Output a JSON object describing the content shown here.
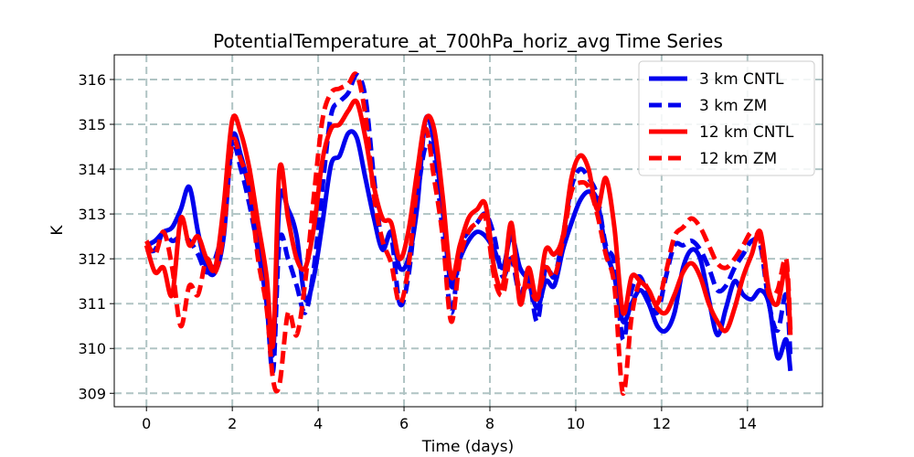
{
  "chart_data": {
    "type": "line",
    "title": "PotentialTemperature_at_700hPa_horiz_avg Time Series",
    "xlabel": "Time (days)",
    "ylabel": "K",
    "xlim": [
      -0.75,
      15.75
    ],
    "ylim": [
      308.7,
      316.55
    ],
    "xticks": [
      0,
      2,
      4,
      6,
      8,
      10,
      12,
      14
    ],
    "xtick_labels": [
      "0",
      "2",
      "4",
      "6",
      "8",
      "10",
      "12",
      "14"
    ],
    "yticks": [
      309,
      310,
      311,
      312,
      313,
      314,
      315,
      316
    ],
    "ytick_labels": [
      "309",
      "310",
      "311",
      "312",
      "313",
      "314",
      "315",
      "316"
    ],
    "grid": true,
    "legend_position": "top-right",
    "series": [
      {
        "name": "3 km CNTL",
        "color": "#0000ee",
        "style": "solid",
        "x": [
          0,
          0.2,
          0.4,
          0.6,
          0.8,
          1.0,
          1.2,
          1.4,
          1.6,
          1.8,
          2.0,
          2.2,
          2.4,
          2.6,
          2.8,
          2.95,
          3.1,
          3.3,
          3.5,
          3.7,
          3.9,
          4.1,
          4.3,
          4.5,
          4.7,
          4.9,
          5.1,
          5.3,
          5.5,
          5.7,
          5.9,
          6.1,
          6.3,
          6.5,
          6.7,
          6.9,
          7.1,
          7.3,
          7.5,
          7.7,
          7.9,
          8.1,
          8.3,
          8.5,
          8.7,
          8.9,
          9.1,
          9.3,
          9.5,
          9.7,
          9.9,
          10.1,
          10.3,
          10.5,
          10.7,
          10.9,
          11.1,
          11.3,
          11.5,
          11.7,
          11.9,
          12.1,
          12.3,
          12.5,
          12.7,
          12.9,
          13.1,
          13.3,
          13.5,
          13.7,
          13.9,
          14.1,
          14.3,
          14.5,
          14.7,
          14.9,
          15.0
        ],
        "values": [
          312.3,
          312.4,
          312.6,
          312.7,
          313.1,
          313.6,
          312.6,
          311.8,
          311.7,
          312.5,
          314.7,
          314.3,
          313.5,
          312.4,
          311.2,
          309.9,
          313.3,
          313.1,
          312.5,
          311.1,
          311.6,
          312.8,
          314.1,
          314.3,
          314.8,
          314.7,
          313.8,
          312.9,
          312.2,
          312.6,
          311.8,
          312.0,
          313.1,
          315.1,
          314.6,
          313.1,
          311.4,
          312.0,
          312.4,
          312.6,
          312.5,
          312.2,
          311.8,
          312.5,
          311.8,
          311.5,
          310.9,
          311.5,
          311.4,
          312.2,
          312.8,
          313.3,
          313.5,
          313.3,
          312.2,
          311.6,
          310.6,
          311.0,
          311.3,
          311.0,
          310.5,
          310.4,
          310.8,
          311.8,
          312.2,
          312.0,
          311.1,
          310.3,
          310.9,
          311.5,
          311.2,
          311.1,
          311.3,
          311.0,
          309.8,
          310.2,
          309.5
        ]
      },
      {
        "name": "3 km ZM",
        "color": "#0000ee",
        "style": "dashed",
        "x": [
          0,
          0.2,
          0.4,
          0.6,
          0.8,
          1.0,
          1.2,
          1.4,
          1.6,
          1.8,
          2.0,
          2.2,
          2.4,
          2.6,
          2.8,
          2.95,
          3.1,
          3.3,
          3.5,
          3.7,
          3.9,
          4.1,
          4.3,
          4.5,
          4.7,
          4.9,
          5.1,
          5.3,
          5.5,
          5.7,
          5.9,
          6.1,
          6.3,
          6.5,
          6.7,
          6.9,
          7.1,
          7.3,
          7.5,
          7.7,
          7.9,
          8.1,
          8.3,
          8.5,
          8.7,
          8.9,
          9.1,
          9.3,
          9.5,
          9.7,
          9.9,
          10.1,
          10.3,
          10.5,
          10.7,
          10.9,
          11.1,
          11.3,
          11.5,
          11.7,
          11.9,
          12.1,
          12.3,
          12.5,
          12.7,
          12.9,
          13.1,
          13.3,
          13.5,
          13.7,
          13.9,
          14.1,
          14.3,
          14.5,
          14.7,
          14.9,
          15.0
        ],
        "values": [
          312.2,
          312.2,
          312.6,
          312.4,
          312.5,
          312.4,
          312.1,
          311.7,
          312.0,
          312.8,
          314.5,
          314.0,
          313.2,
          312.2,
          311.0,
          309.5,
          312.4,
          312.0,
          311.4,
          310.8,
          311.8,
          313.6,
          315.2,
          315.5,
          315.7,
          316.1,
          315.6,
          313.8,
          312.3,
          312.5,
          311.0,
          311.6,
          313.3,
          314.5,
          314.3,
          312.6,
          310.8,
          312.2,
          312.6,
          312.8,
          313.0,
          312.5,
          311.6,
          312.0,
          311.2,
          311.6,
          310.6,
          311.8,
          311.6,
          312.5,
          313.6,
          314.0,
          313.8,
          313.4,
          312.3,
          311.9,
          310.2,
          311.3,
          311.6,
          311.1,
          310.8,
          311.6,
          312.3,
          312.3,
          312.4,
          312.2,
          311.8,
          311.3,
          311.4,
          311.8,
          312.1,
          312.4,
          312.3,
          311.0,
          310.4,
          311.2,
          309.8
        ]
      },
      {
        "name": "12 km CNTL",
        "color": "#ff0000",
        "style": "solid",
        "x": [
          0,
          0.2,
          0.4,
          0.6,
          0.8,
          1.0,
          1.2,
          1.4,
          1.6,
          1.8,
          2.0,
          2.2,
          2.4,
          2.6,
          2.8,
          2.95,
          3.1,
          3.3,
          3.5,
          3.7,
          3.9,
          4.1,
          4.3,
          4.5,
          4.7,
          4.9,
          5.1,
          5.3,
          5.5,
          5.7,
          5.9,
          6.1,
          6.3,
          6.5,
          6.7,
          6.9,
          7.1,
          7.3,
          7.5,
          7.7,
          7.9,
          8.1,
          8.3,
          8.5,
          8.7,
          8.9,
          9.1,
          9.3,
          9.5,
          9.7,
          9.9,
          10.1,
          10.3,
          10.5,
          10.7,
          10.9,
          11.1,
          11.3,
          11.5,
          11.7,
          11.9,
          12.1,
          12.3,
          12.5,
          12.7,
          12.9,
          13.1,
          13.3,
          13.5,
          13.7,
          13.9,
          14.1,
          14.3,
          14.5,
          14.7,
          14.9,
          15.0
        ],
        "values": [
          312.3,
          311.7,
          311.8,
          311.2,
          312.9,
          312.3,
          312.5,
          312.0,
          311.8,
          313.2,
          315.1,
          314.8,
          314.0,
          312.8,
          311.6,
          310.1,
          314.0,
          312.9,
          312.0,
          311.8,
          312.7,
          314.2,
          314.9,
          315.0,
          315.3,
          315.5,
          314.7,
          313.6,
          312.9,
          312.8,
          312.0,
          312.6,
          313.9,
          315.1,
          314.9,
          313.4,
          311.6,
          312.3,
          312.9,
          313.1,
          313.2,
          311.8,
          311.4,
          312.8,
          311.0,
          311.8,
          311.1,
          312.2,
          312.1,
          312.5,
          313.8,
          314.3,
          314.0,
          313.1,
          313.8,
          312.7,
          310.8,
          311.6,
          311.5,
          311.3,
          310.9,
          310.8,
          311.2,
          311.7,
          311.9,
          311.6,
          311.0,
          310.6,
          310.4,
          310.9,
          311.6,
          312.1,
          312.6,
          311.3,
          311.0,
          311.8,
          310.3
        ]
      },
      {
        "name": "12 km ZM",
        "color": "#ff0000",
        "style": "dashed",
        "x": [
          0,
          0.2,
          0.4,
          0.6,
          0.8,
          1.0,
          1.2,
          1.4,
          1.6,
          1.8,
          2.0,
          2.2,
          2.4,
          2.6,
          2.8,
          2.95,
          3.1,
          3.3,
          3.5,
          3.7,
          3.9,
          4.1,
          4.3,
          4.5,
          4.7,
          4.9,
          5.1,
          5.3,
          5.5,
          5.7,
          5.9,
          6.1,
          6.3,
          6.5,
          6.7,
          6.9,
          7.1,
          7.3,
          7.5,
          7.7,
          7.9,
          8.1,
          8.3,
          8.5,
          8.7,
          8.9,
          9.1,
          9.3,
          9.5,
          9.7,
          9.9,
          10.1,
          10.3,
          10.5,
          10.7,
          10.9,
          11.1,
          11.3,
          11.5,
          11.7,
          11.9,
          12.1,
          12.3,
          12.5,
          12.7,
          12.9,
          13.1,
          13.3,
          13.5,
          13.7,
          13.9,
          14.1,
          14.3,
          14.5,
          14.7,
          14.9,
          15.0
        ],
        "values": [
          312.4,
          312.1,
          312.6,
          311.8,
          310.5,
          311.4,
          311.2,
          312.0,
          311.7,
          312.6,
          314.6,
          314.2,
          313.6,
          312.0,
          310.9,
          309.3,
          309.2,
          310.8,
          310.3,
          311.5,
          313.4,
          315.1,
          315.7,
          315.8,
          315.9,
          316.1,
          315.2,
          313.4,
          312.4,
          311.9,
          311.0,
          311.8,
          313.6,
          314.9,
          313.8,
          312.5,
          310.6,
          312.0,
          312.6,
          312.8,
          312.9,
          311.6,
          311.2,
          312.1,
          311.3,
          311.4,
          311.1,
          311.8,
          311.6,
          312.4,
          313.5,
          313.7,
          313.6,
          313.0,
          312.1,
          311.4,
          309.0,
          310.7,
          311.5,
          311.3,
          311.0,
          311.7,
          312.5,
          312.7,
          312.9,
          312.7,
          312.3,
          311.9,
          311.8,
          312.0,
          312.3,
          312.6,
          312.4,
          311.2,
          311.3,
          312.0,
          310.4
        ]
      }
    ]
  }
}
